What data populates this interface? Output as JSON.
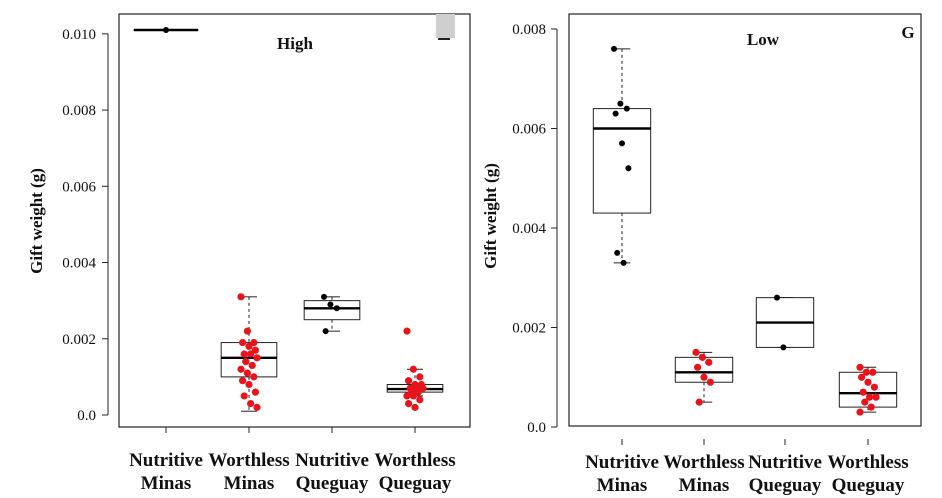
{
  "chart_data": [
    {
      "type": "box",
      "title": "High",
      "ylabel": "Gift weight (g)",
      "ylim": [
        0,
        0.0103
      ],
      "yticks": [
        "0.0",
        "0.002",
        "0.004",
        "0.006",
        "0.008",
        "0.010"
      ],
      "categories": [
        {
          "line1": "Nutritive",
          "line2": "Minas"
        },
        {
          "line1": "Worthless",
          "line2": "Minas"
        },
        {
          "line1": "Nutritive",
          "line2": "Queguay"
        },
        {
          "line1": "Worthless",
          "line2": "Queguay"
        }
      ],
      "boxes": [
        {
          "whisker_low": 0.0101,
          "q1": 0.0101,
          "median": 0.0101,
          "q3": 0.0101,
          "whisker_high": 0.0101,
          "color": "#000000",
          "points": [
            0.0101
          ]
        },
        {
          "whisker_low": 0.0001,
          "q1": 0.001,
          "median": 0.0015,
          "q3": 0.0019,
          "whisker_high": 0.0031,
          "color": "#e8141b",
          "points": [
            0.0031,
            0.0022,
            0.0019,
            0.0019,
            0.0018,
            0.0017,
            0.0016,
            0.0016,
            0.0015,
            0.0014,
            0.0013,
            0.0012,
            0.0011,
            0.001,
            0.0009,
            0.0008,
            0.0006,
            0.0005,
            0.0003,
            0.0002
          ]
        },
        {
          "whisker_low": 0.0022,
          "q1": 0.0025,
          "median": 0.0028,
          "q3": 0.003,
          "whisker_high": 0.0031,
          "color": "#000000",
          "points": [
            0.0031,
            0.0029,
            0.0028,
            0.0022
          ]
        },
        {
          "whisker_low": 0.0005,
          "q1": 0.0006,
          "median": 0.00068,
          "q3": 0.0008,
          "whisker_high": 0.0012,
          "color": "#e8141b",
          "points": [
            0.0022,
            0.0012,
            0.001,
            0.0009,
            0.0008,
            0.0008,
            0.0007,
            0.0007,
            0.0007,
            0.0006,
            0.0006,
            0.0005,
            0.0005,
            0.0004,
            0.0003,
            0.0002
          ]
        }
      ]
    },
    {
      "type": "box",
      "title": "Low",
      "panel_letter": "G",
      "ylabel": "Gift weight (g)",
      "ylim": [
        0,
        0.0083
      ],
      "yticks": [
        "0.0",
        "0.002",
        "0.004",
        "0.006",
        "0.008"
      ],
      "categories": [
        {
          "line1": "Nutritive",
          "line2": "Minas"
        },
        {
          "line1": "Worthless",
          "line2": "Minas"
        },
        {
          "line1": "Nutritive",
          "line2": "Queguay"
        },
        {
          "line1": "Worthless",
          "line2": "Queguay"
        }
      ],
      "boxes": [
        {
          "whisker_low": 0.0033,
          "q1": 0.0043,
          "median": 0.006,
          "q3": 0.0064,
          "whisker_high": 0.0076,
          "color": "#000000",
          "points": [
            0.0076,
            0.0065,
            0.0064,
            0.0063,
            0.0057,
            0.0052,
            0.0035,
            0.0033
          ]
        },
        {
          "whisker_low": 0.0005,
          "q1": 0.0009,
          "median": 0.0011,
          "q3": 0.0014,
          "whisker_high": 0.0015,
          "color": "#e8141b",
          "points": [
            0.0015,
            0.0014,
            0.0013,
            0.0012,
            0.001,
            0.0009,
            0.0005
          ]
        },
        {
          "whisker_low": 0.0016,
          "q1": 0.0016,
          "median": 0.0021,
          "q3": 0.0026,
          "whisker_high": 0.0026,
          "color": "#000000",
          "points": [
            0.0026,
            0.0016
          ]
        },
        {
          "whisker_low": 0.0003,
          "q1": 0.0004,
          "median": 0.00068,
          "q3": 0.0011,
          "whisker_high": 0.0012,
          "color": "#e8141b",
          "points": [
            0.0012,
            0.0011,
            0.0011,
            0.001,
            0.0009,
            0.0008,
            0.0007,
            0.0006,
            0.0006,
            0.0005,
            0.0004,
            0.0003
          ]
        }
      ]
    }
  ]
}
